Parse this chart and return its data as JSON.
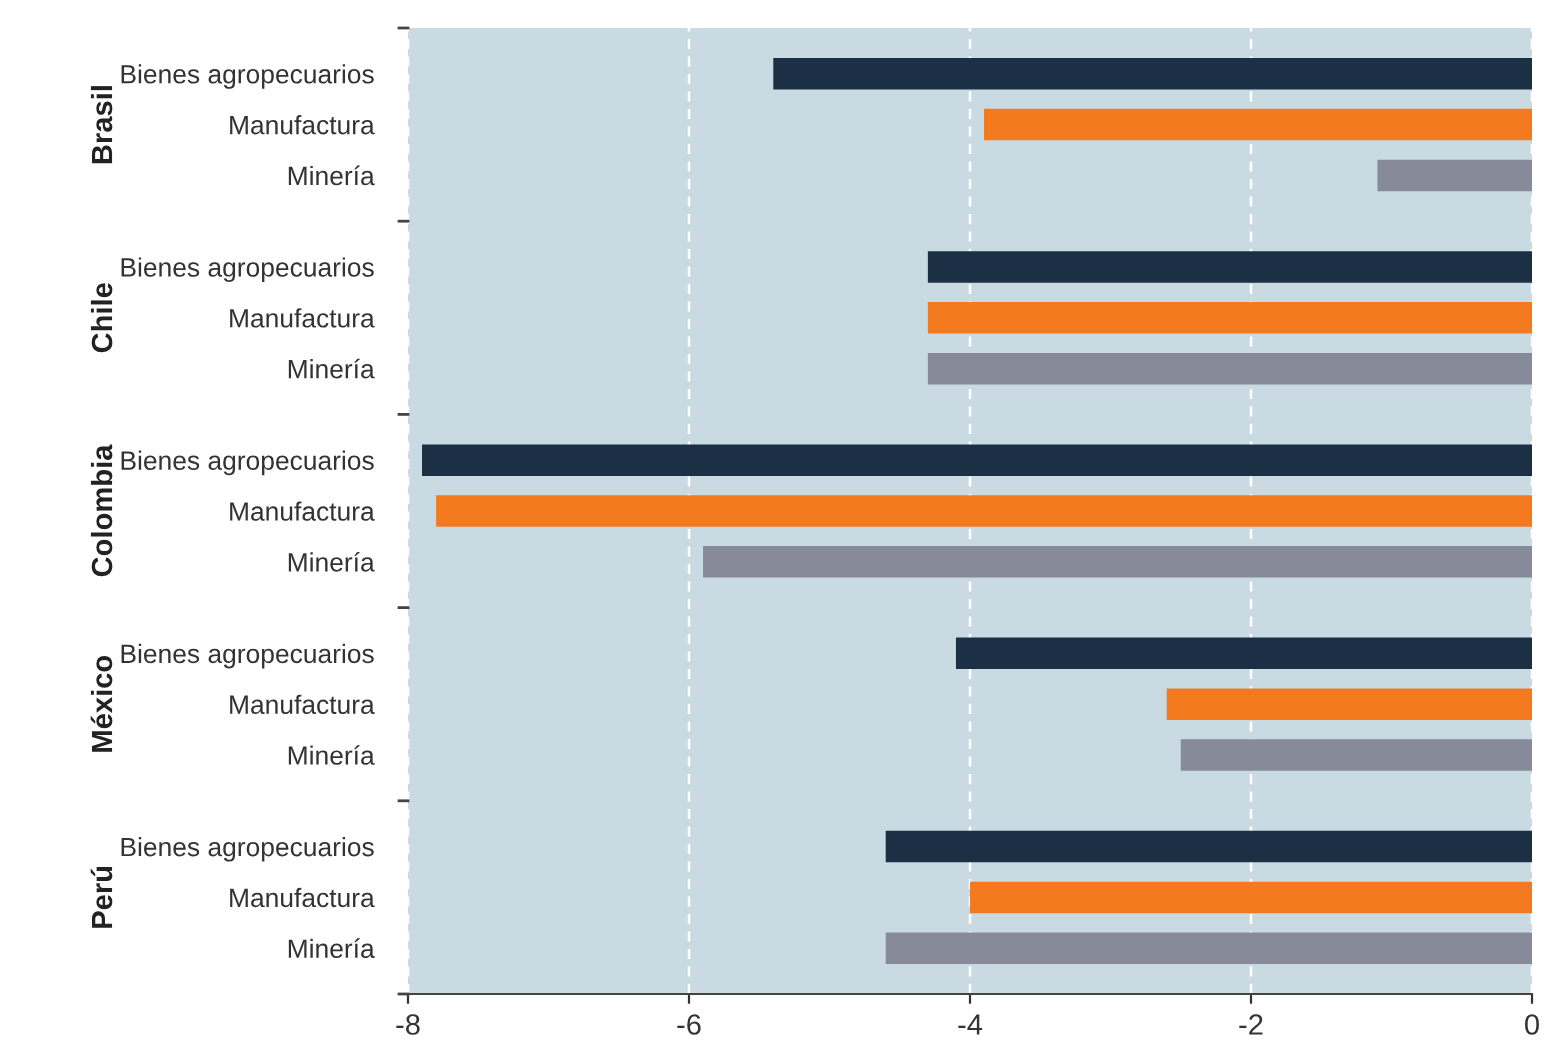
{
  "chart_data": {
    "type": "bar",
    "orientation": "horizontal",
    "categories": [
      "Bienes agropecuarios",
      "Manufactura",
      "Minería",
      "Bienes agropecuarios",
      "Manufactura",
      "Minería",
      "Bienes agropecuarios",
      "Manufactura",
      "Minería",
      "Bienes agropecuarios",
      "Manufactura",
      "Minería",
      "Bienes agropecuarios",
      "Manufactura",
      "Minería"
    ],
    "values": [
      -5.4,
      -3.9,
      -1.1,
      -4.3,
      -4.3,
      -4.3,
      -7.9,
      -7.8,
      -5.9,
      -4.1,
      -2.6,
      -2.5,
      -4.6,
      -4.0,
      -4.6
    ],
    "colors": [
      "#1b2f45",
      "#f47a20",
      "#878a99",
      "#1b2f45",
      "#f47a20",
      "#878a99",
      "#1b2f45",
      "#f47a20",
      "#878a99",
      "#1b2f45",
      "#f47a20",
      "#878a99",
      "#1b2f45",
      "#f47a20",
      "#878a99"
    ],
    "annotations": [
      "Brasil",
      "Chile",
      "Colombia",
      "México",
      "Perú"
    ],
    "xlim": [
      -8,
      0
    ],
    "xticks": [
      -8,
      -6,
      -4,
      -2,
      0
    ],
    "grid": "x"
  }
}
